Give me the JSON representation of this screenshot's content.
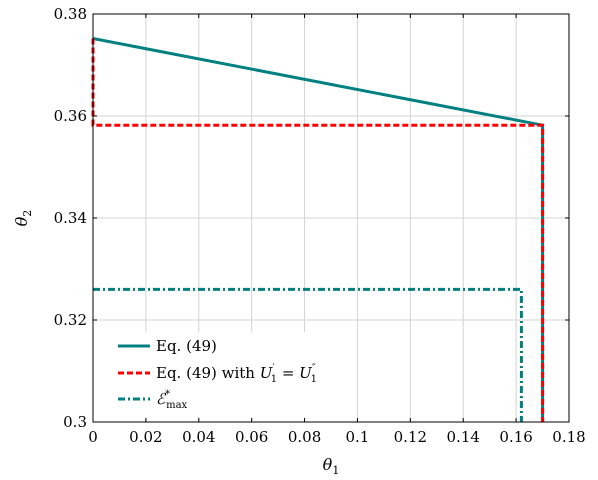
{
  "chart_data": {
    "type": "line",
    "title": "",
    "xlabel": "θ",
    "xlabel_sub": "1",
    "ylabel": "θ",
    "ylabel_sub": "2",
    "xlim": [
      0,
      0.18
    ],
    "ylim": [
      0.3,
      0.38
    ],
    "xticks": [
      0,
      0.02,
      0.04,
      0.06,
      0.08,
      0.1,
      0.12,
      0.14,
      0.16,
      0.18
    ],
    "xtick_labels": [
      "0",
      "0.02",
      "0.04",
      "0.06",
      "0.08",
      "0.1",
      "0.12",
      "0.14",
      "0.16",
      "0.18"
    ],
    "yticks": [
      0.3,
      0.32,
      0.34,
      0.36,
      0.38
    ],
    "ytick_labels": [
      "0.3",
      "0.32",
      "0.34",
      "0.36",
      "0.38"
    ],
    "grid": true,
    "legend_position": "bottom-left",
    "series": [
      {
        "name": "Eq. (49)",
        "color": "#008080",
        "style": "solid",
        "points": [
          [
            0,
            0.3752
          ],
          [
            0.17,
            0.3582
          ],
          [
            0.17,
            0.3
          ]
        ]
      },
      {
        "name": "Eq. (49) with U′1 = U″1",
        "color": "#ff0000",
        "style": "dashed",
        "points": [
          [
            0,
            0.3752
          ],
          [
            0,
            0.3582
          ],
          [
            0.17,
            0.3582
          ],
          [
            0.17,
            0.3
          ]
        ]
      },
      {
        "name": "E*max",
        "color": "#008080",
        "style": "dashdot",
        "points": [
          [
            0,
            0.326
          ],
          [
            0.162,
            0.326
          ],
          [
            0.162,
            0.3
          ]
        ]
      }
    ]
  },
  "legend": {
    "entry1": {
      "text": "Eq. (49)"
    },
    "entry2": {
      "prefix": "Eq. (49) with ",
      "u": "U",
      "p1": "′",
      "sub1": "1",
      "eq": " = ",
      "p2": "″",
      "sub2": "1"
    },
    "entry3": {
      "script": "ℰ",
      "sup": "*",
      "sub": "max"
    }
  }
}
